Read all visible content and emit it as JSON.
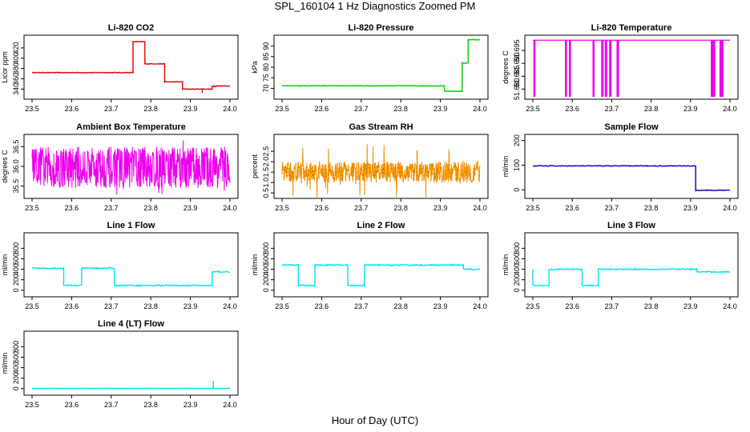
{
  "figure": {
    "title": "SPL_160104  1 Hz Diagnostics Zoomed PM",
    "xlabel": "Hour of Day (UTC)"
  },
  "chart_data": [
    {
      "type": "line",
      "title": "Li-820 CO2",
      "ylabel": "Licor ppm",
      "color": "#e00000",
      "xlim": [
        23.5,
        24.0
      ],
      "ylim": [
        325,
        440
      ],
      "xticks": [
        23.5,
        23.6,
        23.7,
        23.8,
        23.9,
        24.0
      ],
      "xtick_labels": [
        "23.5",
        "23.6",
        "23.7",
        "23.8",
        "23.9",
        "24.0"
      ],
      "yticks": [
        340,
        360,
        380,
        400,
        420
      ],
      "ytick_labels": [
        "340",
        "360",
        "380",
        "400",
        "420"
      ],
      "noise": 0.6,
      "spikes": [
        [
          23.93,
          333
        ],
        [
          23.96,
          348
        ]
      ],
      "steps": [
        [
          23.5,
          23.755,
          372
        ],
        [
          23.755,
          23.785,
          432
        ],
        [
          23.785,
          23.835,
          389
        ],
        [
          23.835,
          23.88,
          354
        ],
        [
          23.88,
          23.955,
          340
        ],
        [
          23.955,
          23.965,
          345
        ],
        [
          23.965,
          24.0,
          346
        ]
      ]
    },
    {
      "type": "line",
      "title": "Li-820 Pressure",
      "ylabel": "kPa",
      "color": "#00cc00",
      "xlim": [
        23.5,
        24.0
      ],
      "ylim": [
        66,
        94
      ],
      "xticks": [
        23.5,
        23.6,
        23.7,
        23.8,
        23.9,
        24.0
      ],
      "xtick_labels": [
        "23.5",
        "23.6",
        "23.7",
        "23.8",
        "23.9",
        "24.0"
      ],
      "yticks": [
        70,
        75,
        80,
        85,
        90
      ],
      "ytick_labels": [
        "70",
        "75",
        "80",
        "85",
        "90"
      ],
      "noise": 0.15,
      "spikes": [],
      "steps": [
        [
          23.5,
          23.91,
          71.2
        ],
        [
          23.91,
          23.955,
          68.6
        ],
        [
          23.955,
          23.97,
          82
        ],
        [
          23.97,
          24.0,
          93
        ]
      ]
    },
    {
      "type": "line",
      "title": "Li-820 Temperature",
      "ylabel": "degrees C",
      "color": "#ee00ee",
      "xlim": [
        23.5,
        24.0
      ],
      "ylim": [
        51.677,
        51.7
      ],
      "xticks": [
        23.5,
        23.6,
        23.7,
        23.8,
        23.9,
        24.0
      ],
      "xtick_labels": [
        "23.5",
        "23.6",
        "23.7",
        "23.8",
        "23.9",
        "24.0"
      ],
      "yticks": [
        51.68,
        51.685,
        51.69,
        51.695
      ],
      "ytick_labels": [
        "51.680",
        "51.685",
        "51.690",
        "51.695"
      ],
      "noise": 0,
      "base": 51.699,
      "low": 51.677,
      "drops": [
        23.503,
        23.505,
        23.583,
        23.585,
        23.593,
        23.595,
        23.653,
        23.655,
        23.675,
        23.678,
        23.684,
        23.687,
        23.695,
        23.698,
        23.714,
        23.717,
        23.953,
        23.955,
        23.958,
        23.961,
        23.975,
        23.977,
        23.98,
        23.982
      ]
    },
    {
      "type": "line",
      "title": "Ambient Box Temperature",
      "ylabel": "degrees C",
      "color": "#ee00ee",
      "xlim": [
        23.5,
        24.0
      ],
      "ylim": [
        35.25,
        36.75
      ],
      "xticks": [
        23.5,
        23.6,
        23.7,
        23.8,
        23.9,
        24.0
      ],
      "xtick_labels": [
        "23.5",
        "23.6",
        "23.7",
        "23.8",
        "23.9",
        "24.0"
      ],
      "yticks": [
        35.5,
        36.0,
        36.5
      ],
      "ytick_labels": [
        "35.5",
        "36.0",
        "36.5"
      ],
      "band": [
        35.45,
        36.5
      ],
      "dense": true
    },
    {
      "type": "line",
      "title": "Gas Stream RH",
      "ylabel": "percent",
      "color": "#ff9900",
      "marker_color": "#000000",
      "xlim": [
        23.5,
        24.0
      ],
      "ylim": [
        0.35,
        3.2
      ],
      "xticks": [
        23.5,
        23.6,
        23.7,
        23.8,
        23.9,
        24.0
      ],
      "xtick_labels": [
        "23.5",
        "23.6",
        "23.7",
        "23.8",
        "23.9",
        "24.0"
      ],
      "yticks": [
        0.5,
        1.0,
        1.5,
        2.0,
        2.5
      ],
      "ytick_labels": [
        "0.5",
        "1.0",
        "1.5",
        "2.0",
        "2.5"
      ],
      "band": [
        1.0,
        2.0
      ],
      "dense": true
    },
    {
      "type": "line",
      "title": "Sample Flow",
      "ylabel": "ml/min",
      "color": "#0000cc",
      "xlim": [
        23.5,
        24.0
      ],
      "ylim": [
        -25,
        215
      ],
      "xticks": [
        23.5,
        23.6,
        23.7,
        23.8,
        23.9,
        24.0
      ],
      "xtick_labels": [
        "23.5",
        "23.6",
        "23.7",
        "23.8",
        "23.9",
        "24.0"
      ],
      "yticks": [
        0,
        100,
        200
      ],
      "ytick_labels": [
        "0",
        "100",
        "200"
      ],
      "noise": 1.5,
      "spikes": [],
      "steps": [
        [
          23.5,
          23.913,
          97
        ],
        [
          23.913,
          24.0,
          -2
        ]
      ]
    },
    {
      "type": "line",
      "title": "Line 1 Flow",
      "ylabel": "ml/min",
      "color": "#00e5ee",
      "xlim": [
        23.5,
        24.0
      ],
      "ylim": [
        -80,
        1050
      ],
      "xticks": [
        23.5,
        23.6,
        23.7,
        23.8,
        23.9,
        24.0
      ],
      "xtick_labels": [
        "23.5",
        "23.6",
        "23.7",
        "23.8",
        "23.9",
        "24.0"
      ],
      "yticks": [
        0,
        200,
        400,
        600,
        800
      ],
      "ytick_labels": [
        "0",
        "200",
        "400",
        "600",
        "800"
      ],
      "noise": 12,
      "spikes": [],
      "steps": [
        [
          23.5,
          23.58,
          420
        ],
        [
          23.58,
          23.625,
          90
        ],
        [
          23.625,
          23.708,
          420
        ],
        [
          23.708,
          23.955,
          90
        ],
        [
          23.955,
          24.0,
          350
        ]
      ]
    },
    {
      "type": "line",
      "title": "Line 2 Flow",
      "ylabel": "ml/min",
      "color": "#00e5ee",
      "xlim": [
        23.5,
        24.0
      ],
      "ylim": [
        -80,
        1050
      ],
      "xticks": [
        23.5,
        23.6,
        23.7,
        23.8,
        23.9,
        24.0
      ],
      "xtick_labels": [
        "23.5",
        "23.6",
        "23.7",
        "23.8",
        "23.9",
        "24.0"
      ],
      "yticks": [
        0,
        200,
        400,
        600,
        800
      ],
      "ytick_labels": [
        "0",
        "200",
        "400",
        "600",
        "800"
      ],
      "noise": 12,
      "spikes": [],
      "steps": [
        [
          23.5,
          23.541,
          480
        ],
        [
          23.541,
          23.583,
          90
        ],
        [
          23.583,
          23.666,
          480
        ],
        [
          23.666,
          23.708,
          90
        ],
        [
          23.708,
          23.958,
          480
        ],
        [
          23.958,
          24.0,
          400
        ]
      ]
    },
    {
      "type": "line",
      "title": "Line 3 Flow",
      "ylabel": "ml/min",
      "color": "#00e5ee",
      "xlim": [
        23.5,
        24.0
      ],
      "ylim": [
        -80,
        1050
      ],
      "xticks": [
        23.5,
        23.6,
        23.7,
        23.8,
        23.9,
        24.0
      ],
      "xtick_labels": [
        "23.5",
        "23.6",
        "23.7",
        "23.8",
        "23.9",
        "24.0"
      ],
      "yticks": [
        0,
        200,
        400,
        600,
        800
      ],
      "ytick_labels": [
        "0",
        "200",
        "400",
        "600",
        "800"
      ],
      "noise": 12,
      "spikes": [],
      "steps": [
        [
          23.5,
          23.5,
          400
        ],
        [
          23.5,
          23.541,
          90
        ],
        [
          23.541,
          23.625,
          400
        ],
        [
          23.625,
          23.666,
          90
        ],
        [
          23.666,
          23.916,
          400
        ],
        [
          23.916,
          24.0,
          350
        ]
      ]
    },
    {
      "type": "line",
      "title": "Line 4 (LT) Flow",
      "ylabel": "ml/min",
      "color": "#00e5ee",
      "xlim": [
        23.5,
        24.0
      ],
      "ylim": [
        -80,
        1050
      ],
      "xticks": [
        23.5,
        23.6,
        23.7,
        23.8,
        23.9,
        24.0
      ],
      "xtick_labels": [
        "23.5",
        "23.6",
        "23.7",
        "23.8",
        "23.9",
        "24.0"
      ],
      "yticks": [
        0,
        200,
        400,
        600,
        800
      ],
      "ytick_labels": [
        "0",
        "200",
        "400",
        "600",
        "800"
      ],
      "noise": 2,
      "spikes": [
        [
          23.958,
          150
        ]
      ],
      "steps": [
        [
          23.5,
          24.0,
          5
        ]
      ]
    }
  ]
}
